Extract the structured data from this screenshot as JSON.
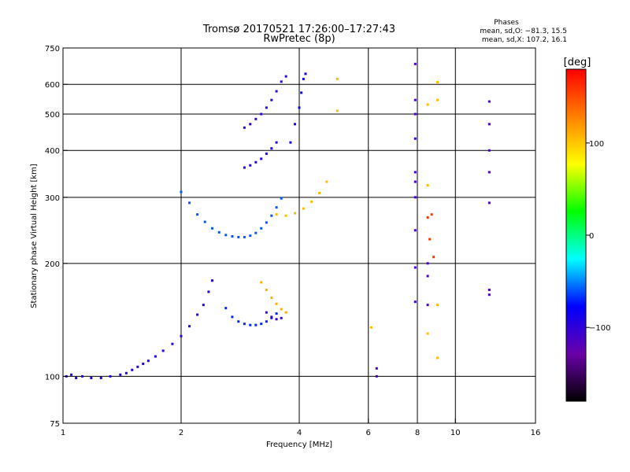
{
  "chart_data": {
    "type": "scatter",
    "title": "Tromsø 20170521 17:26:00–17:27:43",
    "subtitle": "RwPretec (8p)",
    "xlabel": "Frequency [MHz]",
    "ylabel": "Stationary phase Virtual Height [km]",
    "x_scale": "log",
    "y_scale": "log",
    "xlim": [
      1,
      16
    ],
    "ylim": [
      75,
      750
    ],
    "x_ticks": [
      1,
      2,
      4,
      6,
      8,
      10,
      16
    ],
    "x_tick_labels": [
      "1",
      "2",
      "4",
      "6",
      "8",
      "10",
      "16"
    ],
    "x_grid": [
      2,
      4,
      6,
      8,
      10
    ],
    "y_ticks": [
      75,
      100,
      200,
      300,
      400,
      500,
      600,
      750
    ],
    "y_tick_labels": [
      "75",
      "100",
      "200",
      "300",
      "400",
      "500",
      "600",
      "750"
    ],
    "y_grid": [
      100,
      200,
      300,
      400,
      500,
      600
    ],
    "grid": true,
    "phase_box": {
      "title": "Phases",
      "line1": "mean, sd,O: −81.3, 15.5",
      "line2": "mean, sd,X: 107.2, 16.1"
    },
    "colorbar": {
      "label": "[deg]",
      "range": [
        -180,
        180
      ],
      "ticks": [
        100,
        0,
        -100
      ],
      "tick_labels": [
        "100",
        "0",
        "−100"
      ],
      "stops": [
        "#000000",
        "#6a00a8",
        "#0000ff",
        "#00ffff",
        "#00ff00",
        "#ffff00",
        "#ff8000",
        "#ff0000"
      ]
    },
    "series": [
      {
        "points": [
          [
            1.02,
            100
          ],
          [
            1.05,
            101
          ],
          [
            1.08,
            99
          ],
          [
            1.12,
            100
          ],
          [
            1.18,
            99
          ],
          [
            1.25,
            99
          ],
          [
            1.32,
            100
          ],
          [
            1.4,
            101
          ],
          [
            1.45,
            102
          ],
          [
            1.5,
            104
          ],
          [
            1.55,
            106
          ],
          [
            1.6,
            108
          ],
          [
            1.65,
            110
          ],
          [
            1.72,
            113
          ],
          [
            1.8,
            117
          ],
          [
            1.9,
            122
          ],
          [
            2.0,
            128
          ],
          [
            2.1,
            136
          ],
          [
            2.2,
            146
          ],
          [
            2.28,
            155
          ],
          [
            2.35,
            168
          ],
          [
            2.4,
            180
          ]
        ],
        "phase": -95
      },
      {
        "points": [
          [
            2.0,
            310
          ],
          [
            2.1,
            290
          ],
          [
            2.2,
            270
          ],
          [
            2.3,
            258
          ],
          [
            2.4,
            248
          ],
          [
            2.5,
            242
          ],
          [
            2.6,
            238
          ],
          [
            2.7,
            236
          ],
          [
            2.8,
            235
          ],
          [
            2.9,
            235
          ],
          [
            3.0,
            237
          ],
          [
            3.1,
            241
          ],
          [
            3.2,
            248
          ],
          [
            3.3,
            257
          ],
          [
            3.4,
            268
          ],
          [
            3.5,
            282
          ],
          [
            3.6,
            298
          ]
        ],
        "phase": -60
      },
      {
        "points": [
          [
            2.6,
            152
          ],
          [
            2.7,
            144
          ],
          [
            2.8,
            140
          ],
          [
            2.9,
            138
          ],
          [
            3.0,
            137
          ],
          [
            3.1,
            137
          ],
          [
            3.2,
            138
          ],
          [
            3.3,
            140
          ],
          [
            3.4,
            143
          ],
          [
            3.5,
            147
          ]
        ],
        "phase": -70
      },
      {
        "points": [
          [
            3.3,
            148
          ],
          [
            3.4,
            144
          ],
          [
            3.5,
            142
          ],
          [
            3.6,
            143
          ]
        ],
        "phase": -105
      },
      {
        "points": [
          [
            3.2,
            178
          ],
          [
            3.3,
            170
          ],
          [
            3.4,
            162
          ],
          [
            3.5,
            156
          ],
          [
            3.6,
            151
          ],
          [
            3.7,
            148
          ]
        ],
        "phase": 110
      },
      {
        "points": [
          [
            3.5,
            270
          ],
          [
            3.7,
            268
          ],
          [
            3.9,
            272
          ],
          [
            4.1,
            280
          ],
          [
            4.3,
            292
          ],
          [
            4.5,
            308
          ],
          [
            4.7,
            330
          ]
        ],
        "phase": 105
      },
      {
        "points": [
          [
            2.9,
            460
          ],
          [
            3.0,
            470
          ],
          [
            3.1,
            485
          ],
          [
            3.2,
            500
          ],
          [
            3.3,
            520
          ],
          [
            3.4,
            545
          ],
          [
            3.5,
            575
          ],
          [
            3.6,
            610
          ],
          [
            3.7,
            630
          ]
        ],
        "phase": -100
      },
      {
        "points": [
          [
            2.9,
            360
          ],
          [
            3.0,
            365
          ],
          [
            3.1,
            372
          ],
          [
            3.2,
            380
          ],
          [
            3.3,
            392
          ],
          [
            3.4,
            405
          ],
          [
            3.5,
            420
          ]
        ],
        "phase": -95
      },
      {
        "points": [
          [
            3.8,
            420
          ],
          [
            3.9,
            470
          ],
          [
            4.0,
            520
          ],
          [
            4.05,
            570
          ],
          [
            4.1,
            620
          ],
          [
            4.15,
            640
          ]
        ],
        "phase": -85
      },
      {
        "points": [
          [
            7.9,
            680
          ],
          [
            7.9,
            545
          ],
          [
            7.9,
            500
          ],
          [
            7.9,
            430
          ],
          [
            7.9,
            350
          ],
          [
            7.9,
            330
          ],
          [
            7.9,
            300
          ],
          [
            7.9,
            245
          ],
          [
            7.9,
            195
          ],
          [
            7.9,
            158
          ],
          [
            8.5,
            200
          ],
          [
            8.5,
            185
          ],
          [
            8.5,
            155
          ],
          [
            12.2,
            540
          ],
          [
            12.2,
            470
          ],
          [
            12.2,
            400
          ],
          [
            12.2,
            350
          ],
          [
            12.2,
            290
          ],
          [
            12.2,
            170
          ],
          [
            12.2,
            165
          ],
          [
            6.3,
            105
          ],
          [
            6.3,
            100
          ]
        ],
        "phase": -110
      },
      {
        "points": [
          [
            9.0,
            608
          ],
          [
            9.0,
            545
          ],
          [
            8.5,
            530
          ],
          [
            9.0,
            155
          ],
          [
            8.5,
            130
          ],
          [
            9.0,
            112
          ],
          [
            5.0,
            620
          ],
          [
            5.0,
            510
          ],
          [
            8.5,
            323
          ],
          [
            6.1,
            135
          ]
        ],
        "phase": 105
      },
      {
        "points": [
          [
            8.5,
            265
          ],
          [
            8.7,
            270
          ],
          [
            8.6,
            232
          ],
          [
            8.8,
            208
          ]
        ],
        "phase": 160
      }
    ]
  }
}
